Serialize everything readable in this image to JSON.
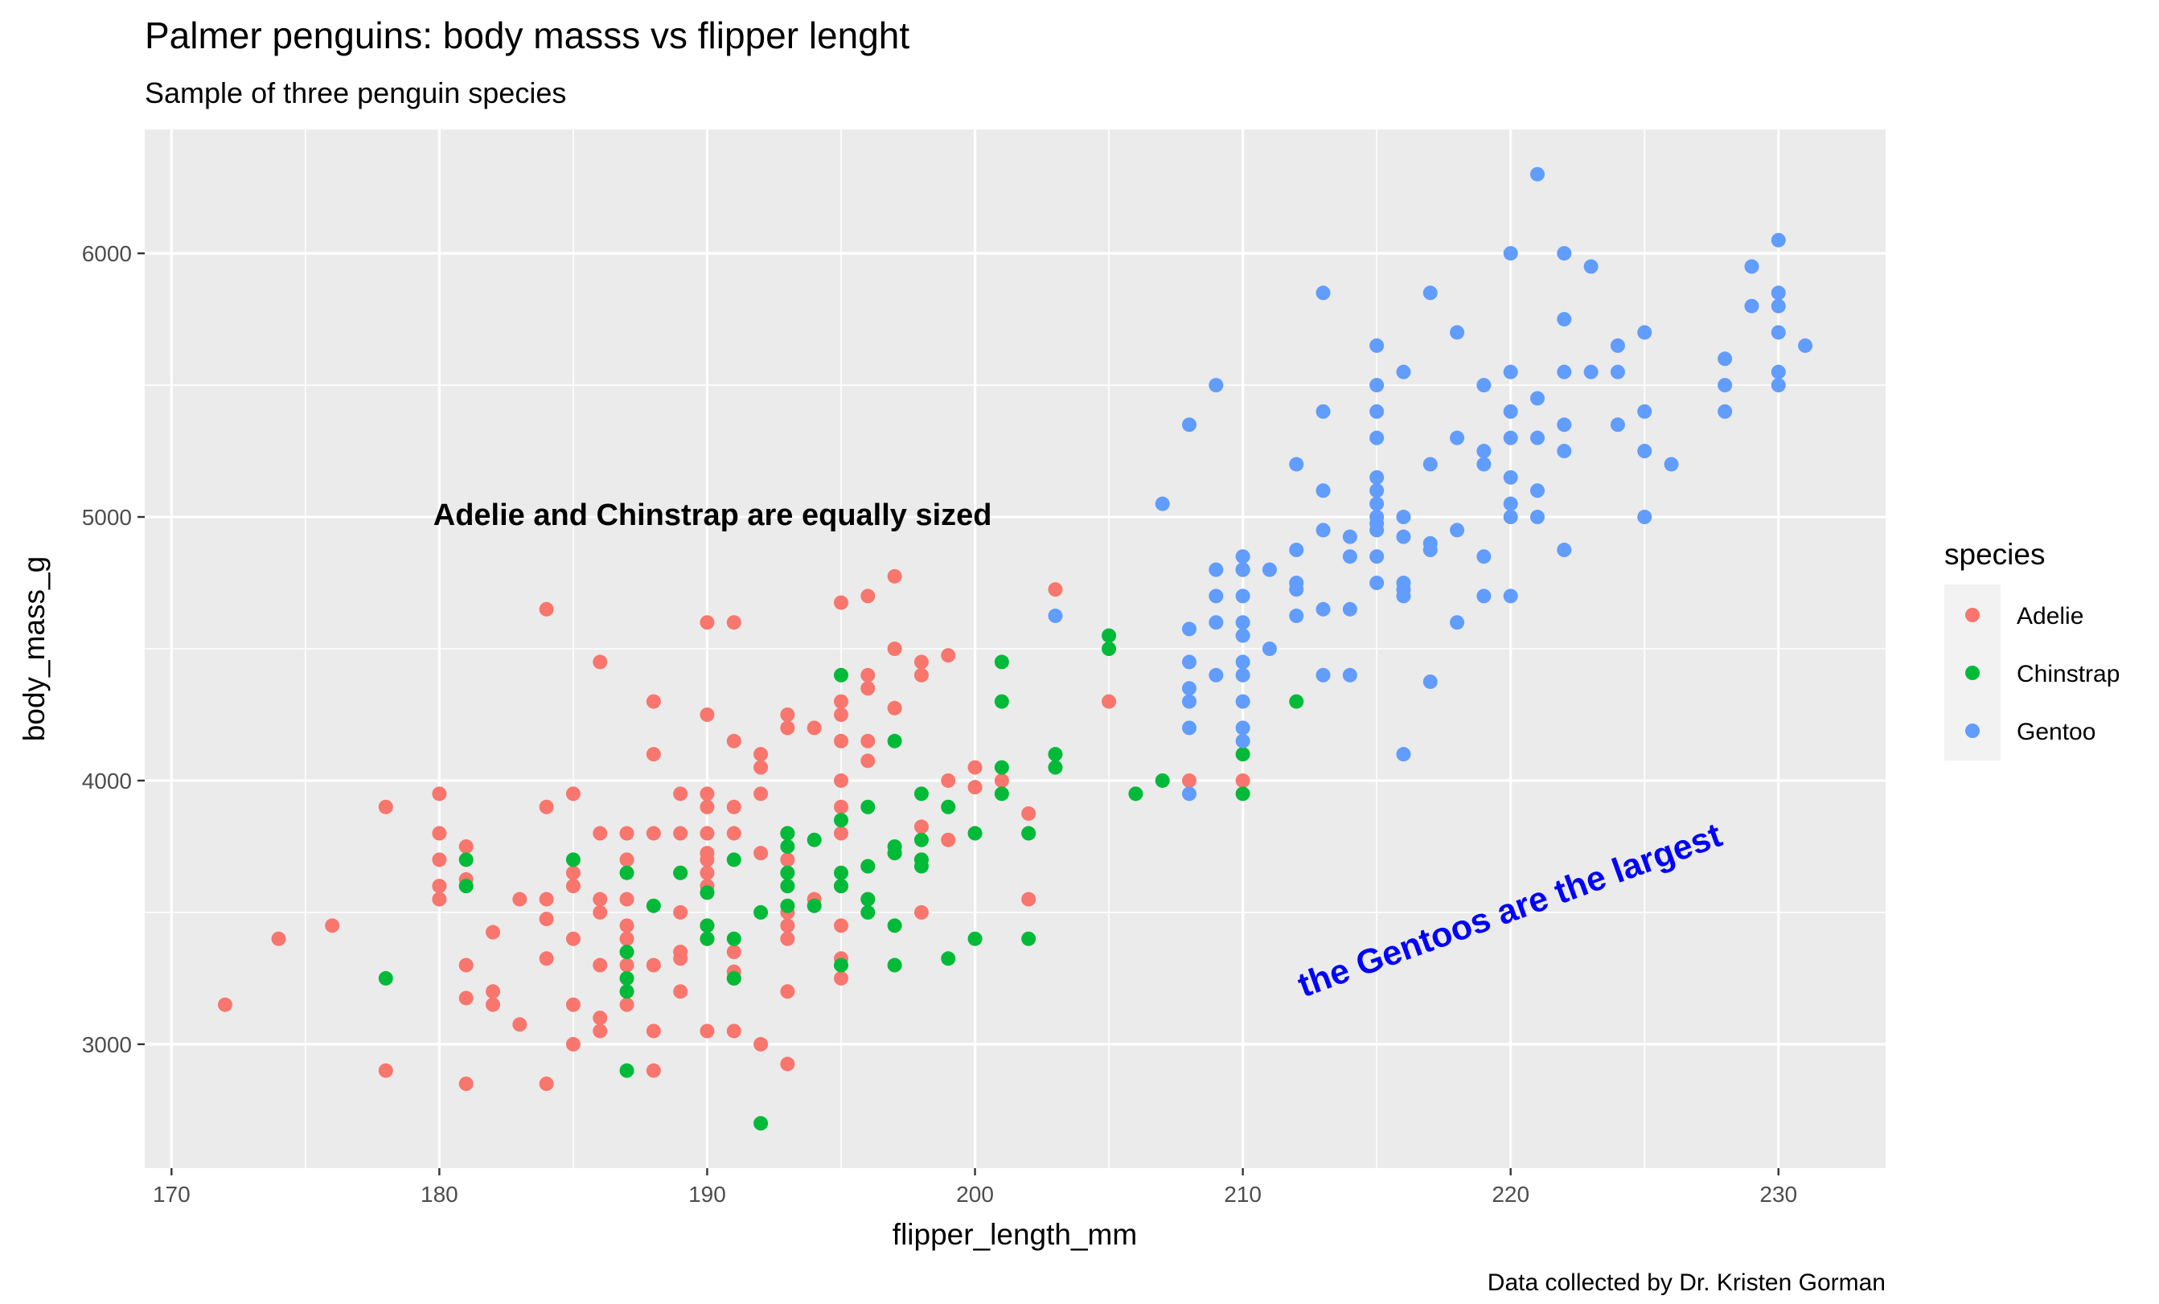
{
  "chart_data": {
    "type": "scatter",
    "title": "Palmer penguins: body masss vs flipper lenght",
    "subtitle": "Sample of three penguin species",
    "caption": "Data collected by Dr. Kristen Gorman",
    "xlabel": "flipper_length_mm",
    "ylabel": "body_mass_g",
    "xlim": [
      169,
      234
    ],
    "ylim": [
      2530,
      6470
    ],
    "x_ticks": [
      170,
      180,
      190,
      200,
      210,
      220,
      230
    ],
    "x_tick_labels": [
      "170",
      "180",
      "190",
      "200",
      "210",
      "220",
      "230"
    ],
    "y_ticks": [
      3000,
      4000,
      5000,
      6000
    ],
    "y_tick_labels": [
      "3000",
      "4000",
      "5000",
      "6000"
    ],
    "grid": true,
    "legend": {
      "title": "species",
      "position": "right"
    },
    "annotations": [
      {
        "text": "Adelie and Chinstrap are equally sized",
        "x": 190.2,
        "y": 5000,
        "color": "#000000",
        "angle": 0
      },
      {
        "text": "the Gentoos are the largest",
        "x": 220,
        "y": 3500,
        "color": "#0000ff",
        "angle": -20
      }
    ],
    "series": [
      {
        "name": "Adelie",
        "color": "#F8766D",
        "points": [
          [
            172,
            3150
          ],
          [
            174,
            3400
          ],
          [
            176,
            3450
          ],
          [
            178,
            3900
          ],
          [
            178,
            2900
          ],
          [
            180,
            3950
          ],
          [
            180,
            3800
          ],
          [
            180,
            3700
          ],
          [
            180,
            3600
          ],
          [
            180,
            3550
          ],
          [
            181,
            3750
          ],
          [
            181,
            3625
          ],
          [
            181,
            3300
          ],
          [
            181,
            3175
          ],
          [
            181,
            2850
          ],
          [
            182,
            3425
          ],
          [
            182,
            3200
          ],
          [
            182,
            3150
          ],
          [
            183,
            3550
          ],
          [
            183,
            3075
          ],
          [
            184,
            4650
          ],
          [
            184,
            3900
          ],
          [
            184,
            3550
          ],
          [
            184,
            3475
          ],
          [
            184,
            3325
          ],
          [
            184,
            2850
          ],
          [
            185,
            3950
          ],
          [
            185,
            3650
          ],
          [
            185,
            3600
          ],
          [
            185,
            3400
          ],
          [
            185,
            3150
          ],
          [
            185,
            3000
          ],
          [
            186,
            4450
          ],
          [
            186,
            3800
          ],
          [
            186,
            3550
          ],
          [
            186,
            3500
          ],
          [
            186,
            3300
          ],
          [
            186,
            3100
          ],
          [
            186,
            3050
          ],
          [
            187,
            3800
          ],
          [
            187,
            3700
          ],
          [
            187,
            3550
          ],
          [
            187,
            3450
          ],
          [
            187,
            3400
          ],
          [
            187,
            3300
          ],
          [
            187,
            3150
          ],
          [
            188,
            4300
          ],
          [
            188,
            4100
          ],
          [
            188,
            3800
          ],
          [
            188,
            3300
          ],
          [
            188,
            3050
          ],
          [
            188,
            2900
          ],
          [
            189,
            3950
          ],
          [
            189,
            3800
          ],
          [
            189,
            3650
          ],
          [
            189,
            3500
          ],
          [
            189,
            3350
          ],
          [
            189,
            3325
          ],
          [
            189,
            3200
          ],
          [
            190,
            4600
          ],
          [
            190,
            4250
          ],
          [
            190,
            3950
          ],
          [
            190,
            3900
          ],
          [
            190,
            3800
          ],
          [
            190,
            3725
          ],
          [
            190,
            3700
          ],
          [
            190,
            3650
          ],
          [
            190,
            3600
          ],
          [
            190,
            3450
          ],
          [
            190,
            3400
          ],
          [
            190,
            3050
          ],
          [
            191,
            4600
          ],
          [
            191,
            4150
          ],
          [
            191,
            3900
          ],
          [
            191,
            3800
          ],
          [
            191,
            3350
          ],
          [
            191,
            3275
          ],
          [
            191,
            3250
          ],
          [
            191,
            3050
          ],
          [
            192,
            4100
          ],
          [
            192,
            4050
          ],
          [
            192,
            3950
          ],
          [
            192,
            3725
          ],
          [
            192,
            3000
          ],
          [
            193,
            4250
          ],
          [
            193,
            4200
          ],
          [
            193,
            3800
          ],
          [
            193,
            3700
          ],
          [
            193,
            3500
          ],
          [
            193,
            3450
          ],
          [
            193,
            3400
          ],
          [
            193,
            3200
          ],
          [
            193,
            2925
          ],
          [
            194,
            4200
          ],
          [
            194,
            3550
          ],
          [
            195,
            4675
          ],
          [
            195,
            4300
          ],
          [
            195,
            4250
          ],
          [
            195,
            4150
          ],
          [
            195,
            4000
          ],
          [
            195,
            3900
          ],
          [
            195,
            3800
          ],
          [
            195,
            3600
          ],
          [
            195,
            3450
          ],
          [
            195,
            3325
          ],
          [
            195,
            3250
          ],
          [
            196,
            4700
          ],
          [
            196,
            4400
          ],
          [
            196,
            4350
          ],
          [
            196,
            4150
          ],
          [
            196,
            4075
          ],
          [
            196,
            3675
          ],
          [
            196,
            3550
          ],
          [
            197,
            4775
          ],
          [
            197,
            4500
          ],
          [
            197,
            4275
          ],
          [
            197,
            3725
          ],
          [
            198,
            4450
          ],
          [
            198,
            4400
          ],
          [
            198,
            3825
          ],
          [
            198,
            3700
          ],
          [
            198,
            3500
          ],
          [
            199,
            4475
          ],
          [
            199,
            4000
          ],
          [
            199,
            3775
          ],
          [
            200,
            4050
          ],
          [
            200,
            3975
          ],
          [
            201,
            4000
          ],
          [
            202,
            3875
          ],
          [
            202,
            3550
          ],
          [
            203,
            4725
          ],
          [
            205,
            4300
          ],
          [
            208,
            4000
          ],
          [
            210,
            4000
          ]
        ]
      },
      {
        "name": "Chinstrap",
        "color": "#00BA38",
        "points": [
          [
            178,
            3250
          ],
          [
            181,
            3700
          ],
          [
            181,
            3600
          ],
          [
            185,
            3700
          ],
          [
            187,
            3650
          ],
          [
            187,
            3350
          ],
          [
            187,
            3250
          ],
          [
            187,
            3200
          ],
          [
            187,
            2900
          ],
          [
            188,
            3525
          ],
          [
            189,
            3650
          ],
          [
            190,
            3575
          ],
          [
            190,
            3450
          ],
          [
            190,
            3400
          ],
          [
            191,
            3700
          ],
          [
            191,
            3400
          ],
          [
            191,
            3250
          ],
          [
            192,
            3500
          ],
          [
            192,
            2700
          ],
          [
            193,
            3800
          ],
          [
            193,
            3750
          ],
          [
            193,
            3650
          ],
          [
            193,
            3600
          ],
          [
            193,
            3525
          ],
          [
            194,
            3775
          ],
          [
            194,
            3525
          ],
          [
            195,
            4400
          ],
          [
            195,
            3850
          ],
          [
            195,
            3650
          ],
          [
            195,
            3600
          ],
          [
            195,
            3300
          ],
          [
            196,
            3900
          ],
          [
            196,
            3675
          ],
          [
            196,
            3550
          ],
          [
            196,
            3500
          ],
          [
            197,
            4150
          ],
          [
            197,
            3750
          ],
          [
            197,
            3725
          ],
          [
            197,
            3450
          ],
          [
            197,
            3300
          ],
          [
            198,
            3950
          ],
          [
            198,
            3775
          ],
          [
            198,
            3700
          ],
          [
            198,
            3675
          ],
          [
            199,
            3900
          ],
          [
            199,
            3325
          ],
          [
            200,
            3800
          ],
          [
            200,
            3400
          ],
          [
            201,
            4450
          ],
          [
            201,
            4300
          ],
          [
            201,
            4050
          ],
          [
            201,
            3950
          ],
          [
            202,
            3800
          ],
          [
            202,
            3400
          ],
          [
            203,
            4100
          ],
          [
            203,
            4050
          ],
          [
            205,
            4550
          ],
          [
            205,
            4500
          ],
          [
            206,
            3950
          ],
          [
            207,
            4000
          ],
          [
            210,
            4800
          ],
          [
            210,
            4100
          ],
          [
            210,
            3950
          ],
          [
            212,
            4300
          ]
        ]
      },
      {
        "name": "Gentoo",
        "color": "#619CFF",
        "points": [
          [
            203,
            4625
          ],
          [
            207,
            5050
          ],
          [
            208,
            5350
          ],
          [
            208,
            4575
          ],
          [
            208,
            4450
          ],
          [
            208,
            4350
          ],
          [
            208,
            4300
          ],
          [
            208,
            4200
          ],
          [
            208,
            3950
          ],
          [
            209,
            5500
          ],
          [
            209,
            4800
          ],
          [
            209,
            4700
          ],
          [
            209,
            4600
          ],
          [
            209,
            4400
          ],
          [
            210,
            4850
          ],
          [
            210,
            4800
          ],
          [
            210,
            4700
          ],
          [
            210,
            4600
          ],
          [
            210,
            4550
          ],
          [
            210,
            4450
          ],
          [
            210,
            4400
          ],
          [
            210,
            4300
          ],
          [
            210,
            4200
          ],
          [
            210,
            4150
          ],
          [
            211,
            4800
          ],
          [
            211,
            4500
          ],
          [
            212,
            5200
          ],
          [
            212,
            4875
          ],
          [
            212,
            4750
          ],
          [
            212,
            4725
          ],
          [
            212,
            4625
          ],
          [
            213,
            5850
          ],
          [
            213,
            5400
          ],
          [
            213,
            5100
          ],
          [
            213,
            4950
          ],
          [
            213,
            4650
          ],
          [
            213,
            4400
          ],
          [
            214,
            4925
          ],
          [
            214,
            4850
          ],
          [
            214,
            4650
          ],
          [
            214,
            4400
          ],
          [
            215,
            5650
          ],
          [
            215,
            5500
          ],
          [
            215,
            5400
          ],
          [
            215,
            5300
          ],
          [
            215,
            5150
          ],
          [
            215,
            5100
          ],
          [
            215,
            5050
          ],
          [
            215,
            5000
          ],
          [
            215,
            4975
          ],
          [
            215,
            4950
          ],
          [
            215,
            4850
          ],
          [
            215,
            4750
          ],
          [
            216,
            5550
          ],
          [
            216,
            5000
          ],
          [
            216,
            4925
          ],
          [
            216,
            4750
          ],
          [
            216,
            4725
          ],
          [
            216,
            4700
          ],
          [
            216,
            4100
          ],
          [
            217,
            5850
          ],
          [
            217,
            5200
          ],
          [
            217,
            4900
          ],
          [
            217,
            4875
          ],
          [
            217,
            4375
          ],
          [
            218,
            5700
          ],
          [
            218,
            5300
          ],
          [
            218,
            4950
          ],
          [
            218,
            4600
          ],
          [
            219,
            5500
          ],
          [
            219,
            5250
          ],
          [
            219,
            5200
          ],
          [
            219,
            4850
          ],
          [
            219,
            4700
          ],
          [
            220,
            6000
          ],
          [
            220,
            5550
          ],
          [
            220,
            5400
          ],
          [
            220,
            5300
          ],
          [
            220,
            5150
          ],
          [
            220,
            5050
          ],
          [
            220,
            5000
          ],
          [
            220,
            4700
          ],
          [
            221,
            6300
          ],
          [
            221,
            5450
          ],
          [
            221,
            5300
          ],
          [
            221,
            5100
          ],
          [
            221,
            5000
          ],
          [
            222,
            6000
          ],
          [
            222,
            5750
          ],
          [
            222,
            5550
          ],
          [
            222,
            5350
          ],
          [
            222,
            5250
          ],
          [
            222,
            4875
          ],
          [
            223,
            5950
          ],
          [
            223,
            5550
          ],
          [
            224,
            5650
          ],
          [
            224,
            5550
          ],
          [
            224,
            5350
          ],
          [
            225,
            5700
          ],
          [
            225,
            5400
          ],
          [
            225,
            5250
          ],
          [
            225,
            5000
          ],
          [
            226,
            5200
          ],
          [
            228,
            5600
          ],
          [
            228,
            5500
          ],
          [
            228,
            5400
          ],
          [
            229,
            5950
          ],
          [
            229,
            5800
          ],
          [
            230,
            6050
          ],
          [
            230,
            5850
          ],
          [
            230,
            5800
          ],
          [
            230,
            5700
          ],
          [
            230,
            5550
          ],
          [
            230,
            5500
          ],
          [
            231,
            5650
          ]
        ]
      }
    ]
  }
}
